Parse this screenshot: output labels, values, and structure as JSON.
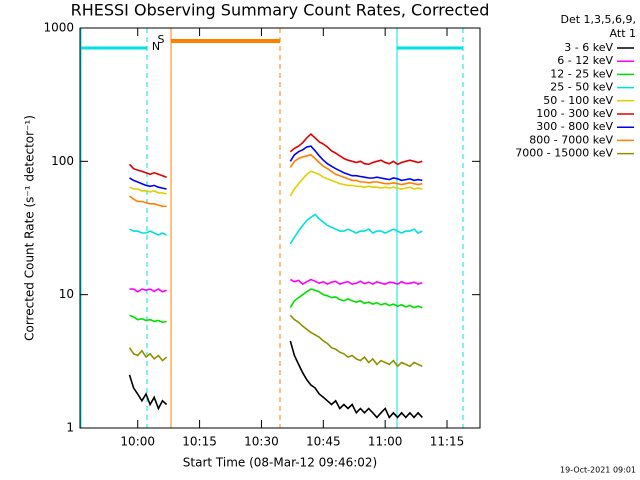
{
  "chart_data": {
    "type": "line",
    "title": "RHESSI Observing Summary Count Rates, Corrected",
    "x_label": "Start Time (08-Mar-12 09:46:02)",
    "y_label": "Corrected Count Rate (s⁻¹ detector⁻¹)",
    "legend_title": [
      "Det 1,3,5,6,9,",
      "Att 1"
    ],
    "timestamp": "19-Oct-2021 09:01",
    "markers": [
      {
        "label": "N",
        "color": "#00e0e0"
      },
      {
        "label": "S",
        "color": "#ff8000"
      }
    ],
    "log_y": true,
    "xlim": [
      "09:46",
      "11:23"
    ],
    "xticks": [
      "10:00",
      "10:15",
      "10:30",
      "10:45",
      "11:00",
      "11:15"
    ],
    "ylim": [
      1,
      1000
    ],
    "yticks": [
      1,
      10,
      100,
      1000
    ],
    "x": [
      "09:58",
      "09:59",
      "10:00",
      "10:01",
      "10:02",
      "10:03",
      "10:04",
      "10:05",
      "10:06",
      "10:07",
      "10:22",
      "10:37",
      "10:38",
      "10:39",
      "10:40",
      "10:41",
      "10:42",
      "10:43",
      "10:44",
      "10:45",
      "10:46",
      "10:47",
      "10:48",
      "10:49",
      "10:50",
      "10:51",
      "10:52",
      "10:53",
      "10:54",
      "10:55",
      "10:56",
      "10:57",
      "10:58",
      "10:59",
      "11:00",
      "11:01",
      "11:02",
      "11:03",
      "11:04",
      "11:05",
      "11:06",
      "11:07",
      "11:08",
      "11:09"
    ],
    "series": [
      {
        "name": "3 - 6 keV",
        "color": "#000000",
        "values": [
          2.5,
          2,
          1.8,
          1.6,
          1.8,
          1.5,
          1.7,
          1.4,
          1.6,
          1.5,
          null,
          4.5,
          3.5,
          3,
          2.6,
          2.3,
          2.1,
          2,
          1.8,
          1.7,
          1.6,
          1.5,
          1.6,
          1.4,
          1.5,
          1.4,
          1.5,
          1.3,
          1.4,
          1.3,
          1.4,
          1.3,
          1.2,
          1.3,
          1.4,
          1.2,
          1.3,
          1.2,
          1.3,
          1.2,
          1.3,
          1.2,
          1.3,
          1.2
        ]
      },
      {
        "name": "6 - 12 keV",
        "color": "#ff00ff",
        "values": [
          11,
          11,
          10.5,
          11,
          10.8,
          11,
          10.6,
          11,
          10.5,
          10.8,
          null,
          13,
          12.5,
          12.8,
          12,
          12.5,
          13,
          12.6,
          12.2,
          12.5,
          12,
          12.4,
          12.6,
          12,
          12.3,
          12.5,
          12,
          12.2,
          12.6,
          12.1,
          12.4,
          12,
          12.5,
          12.2,
          12,
          12.4,
          12.3,
          12,
          12.5,
          12.1,
          12.2,
          12.4,
          12,
          12.3
        ]
      },
      {
        "name": "12 - 25 keV",
        "color": "#00e000",
        "values": [
          7,
          6.8,
          6.5,
          6.6,
          6.4,
          6.5,
          6.3,
          6.4,
          6.2,
          6.3,
          null,
          8,
          9,
          9.5,
          10,
          10.5,
          11,
          10.8,
          10.5,
          10,
          9.8,
          9.5,
          9.6,
          9.2,
          9,
          9.3,
          9,
          8.8,
          9,
          8.6,
          8.8,
          8.5,
          8.7,
          8.4,
          8.6,
          8.3,
          8.5,
          8.2,
          8.4,
          8.1,
          8.3,
          8,
          8.2,
          8
        ]
      },
      {
        "name": "25 - 50 keV",
        "color": "#00e0e0",
        "values": [
          31,
          30,
          30,
          29,
          29,
          30,
          29,
          28,
          29,
          28,
          null,
          24,
          27,
          30,
          33,
          36,
          38,
          40,
          37,
          35,
          33,
          32,
          31,
          30,
          30,
          31,
          30,
          29,
          30,
          30,
          31,
          29,
          30,
          30,
          29,
          30,
          31,
          30,
          29,
          30,
          30,
          31,
          29,
          30
        ]
      },
      {
        "name": "50 - 100 keV",
        "color": "#e0d000",
        "values": [
          64,
          62,
          62,
          60,
          60,
          59,
          60,
          58,
          58,
          57,
          null,
          55,
          62,
          68,
          74,
          80,
          84,
          82,
          80,
          76,
          74,
          72,
          70,
          68,
          67,
          66,
          66,
          65,
          65,
          64,
          65,
          64,
          64,
          63,
          64,
          63,
          64,
          63,
          62,
          63,
          64,
          62,
          63,
          62
        ]
      },
      {
        "name": "100 - 300 keV",
        "color": "#e00000",
        "values": [
          95,
          88,
          86,
          84,
          82,
          80,
          82,
          80,
          78,
          76,
          null,
          118,
          125,
          130,
          138,
          150,
          160,
          150,
          140,
          135,
          128,
          120,
          115,
          110,
          105,
          102,
          100,
          98,
          100,
          96,
          95,
          98,
          100,
          102,
          98,
          96,
          100,
          95,
          98,
          100,
          102,
          100,
          98,
          100
        ]
      },
      {
        "name": "300 - 800 keV",
        "color": "#0000ff",
        "values": [
          75,
          72,
          70,
          68,
          66,
          65,
          66,
          64,
          63,
          62,
          null,
          100,
          112,
          118,
          122,
          128,
          130,
          120,
          110,
          102,
          96,
          92,
          88,
          85,
          82,
          80,
          78,
          78,
          77,
          76,
          75,
          75,
          76,
          75,
          74,
          73,
          75,
          74,
          72,
          73,
          74,
          72,
          73,
          72
        ]
      },
      {
        "name": "800 - 7000 keV",
        "color": "#ff8000",
        "values": [
          55,
          52,
          50,
          50,
          49,
          48,
          48,
          47,
          46,
          46,
          null,
          90,
          100,
          105,
          108,
          110,
          112,
          105,
          98,
          92,
          88,
          84,
          80,
          78,
          76,
          74,
          72,
          72,
          70,
          70,
          69,
          70,
          70,
          69,
          68,
          68,
          69,
          68,
          67,
          68,
          69,
          68,
          67,
          68
        ]
      },
      {
        "name": "7000 - 15000 keV",
        "color": "#909000",
        "values": [
          4,
          3.6,
          3.5,
          3.8,
          3.4,
          3.6,
          3.3,
          3.5,
          3.2,
          3.4,
          null,
          7,
          6.5,
          6.2,
          5.8,
          5.5,
          5.2,
          5,
          4.8,
          4.5,
          4.3,
          4,
          3.9,
          3.7,
          3.6,
          3.4,
          3.5,
          3.3,
          3.2,
          3.4,
          3.1,
          3.3,
          3,
          3.2,
          3.1,
          3,
          3.2,
          2.9,
          3.1,
          3,
          2.9,
          3.1,
          3,
          2.9
        ]
      }
    ]
  }
}
